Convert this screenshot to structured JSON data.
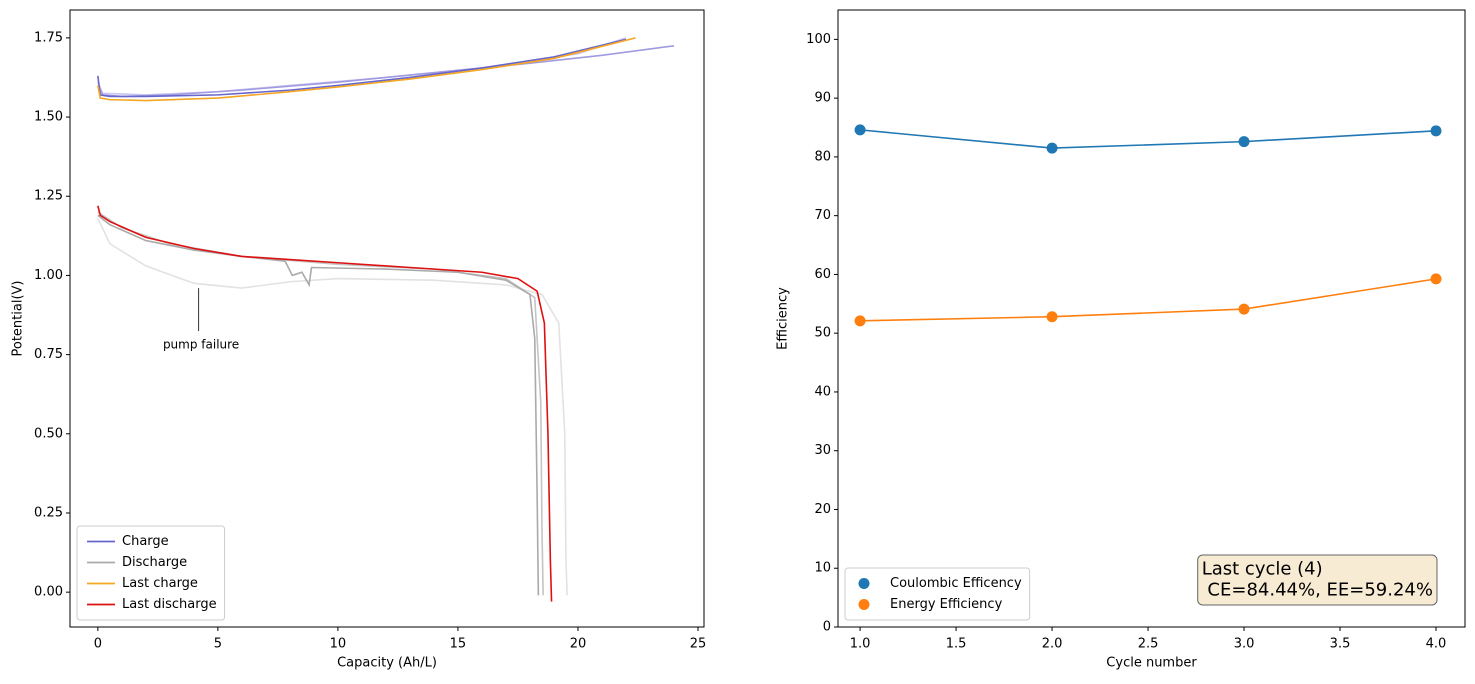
{
  "chart_data": [
    {
      "type": "line",
      "xlabel": "Capacity (Ah/L)",
      "ylabel": "Potential(V)",
      "xlim": [
        -1.16,
        25.25
      ],
      "ylim": [
        -0.11,
        1.838
      ],
      "xticks": [
        0,
        5,
        10,
        15,
        20,
        25
      ],
      "yticks": [
        {
          "value": 0,
          "label": "0.00"
        },
        {
          "value": 0.25,
          "label": "0.25"
        },
        {
          "value": 0.5,
          "label": "0.50"
        },
        {
          "value": 0.75,
          "label": "0.75"
        },
        {
          "value": 1,
          "label": "1.00"
        },
        {
          "value": 1.25,
          "label": "1.25"
        },
        {
          "value": 1.5,
          "label": "1.50"
        },
        {
          "value": 1.75,
          "label": "1.75"
        }
      ],
      "legend": "lower left",
      "markers": false,
      "series": [
        {
          "color": "#c9c4f0",
          "x": [
            0,
            0.2,
            2,
            5,
            8,
            12,
            16,
            20,
            22
          ],
          "values": [
            1.61,
            1.575,
            1.57,
            1.58,
            1.6,
            1.625,
            1.655,
            1.7,
            1.75
          ]
        },
        {
          "color": "#a09ae0",
          "x": [
            0,
            0.2,
            1,
            3,
            6,
            10,
            14,
            18,
            21,
            24
          ],
          "values": [
            1.6,
            1.57,
            1.565,
            1.57,
            1.585,
            1.61,
            1.64,
            1.67,
            1.695,
            1.725
          ]
        },
        {
          "name": "Charge",
          "color": "#6666cc",
          "x": [
            0,
            0.1,
            0.5,
            2,
            5,
            8,
            10,
            13,
            16,
            19,
            22
          ],
          "values": [
            1.63,
            1.57,
            1.565,
            1.565,
            1.57,
            1.585,
            1.6,
            1.625,
            1.655,
            1.69,
            1.745
          ]
        },
        {
          "color": "#e2e2e2",
          "x": [
            0,
            0.5,
            2,
            4,
            6,
            8,
            10,
            14,
            17,
            18.5,
            19.2,
            19.45,
            19.5,
            19.55
          ],
          "values": [
            1.18,
            1.1,
            1.03,
            0.975,
            0.96,
            0.98,
            0.99,
            0.985,
            0.97,
            0.94,
            0.85,
            0.5,
            0.1,
            -0.01
          ]
        },
        {
          "color": "#c4c4c4",
          "x": [
            0,
            1,
            3,
            6,
            10,
            14,
            17,
            18.2,
            18.45,
            18.5,
            18.55
          ],
          "values": [
            1.2,
            1.15,
            1.1,
            1.06,
            1.035,
            1.02,
            0.99,
            0.93,
            0.6,
            0.2,
            -0.01
          ]
        },
        {
          "name": "Discharge",
          "color": "#aaaaaa",
          "x": [
            0,
            0.5,
            2,
            4,
            6,
            7.8,
            8.1,
            8.5,
            8.8,
            8.9,
            12,
            15,
            17,
            18,
            18.2,
            18.3,
            18.35
          ],
          "values": [
            1.19,
            1.16,
            1.11,
            1.08,
            1.06,
            1.045,
            1.0,
            1.01,
            0.97,
            1.025,
            1.02,
            1.01,
            0.985,
            0.94,
            0.8,
            0.3,
            -0.01
          ]
        },
        {
          "name": "Last charge",
          "color": "#f5a623",
          "x": [
            0,
            0.1,
            0.5,
            2,
            5,
            8,
            10,
            13,
            16,
            19,
            22.4
          ],
          "values": [
            1.6,
            1.56,
            1.555,
            1.552,
            1.56,
            1.58,
            1.595,
            1.62,
            1.65,
            1.685,
            1.75
          ]
        },
        {
          "name": "Last discharge",
          "color": "#dd1111",
          "x": [
            0,
            0.1,
            0.5,
            2,
            4,
            6,
            8,
            10,
            13,
            16,
            17.5,
            18.3,
            18.6,
            18.75,
            18.85,
            18.9
          ],
          "values": [
            1.22,
            1.19,
            1.17,
            1.12,
            1.085,
            1.06,
            1.05,
            1.04,
            1.025,
            1.01,
            0.99,
            0.95,
            0.85,
            0.5,
            0.1,
            -0.03
          ]
        }
      ],
      "annotation": {
        "text": "pump failure",
        "xy": [
          4.2,
          0.96
        ],
        "xytext": [
          4.3,
          0.78
        ]
      }
    },
    {
      "type": "line",
      "xlabel": "Cycle number",
      "ylabel": "Efficiency",
      "xlim": [
        0.885,
        4.151
      ],
      "ylim": [
        0,
        105
      ],
      "xticks": [
        {
          "value": 1,
          "label": "1.0"
        },
        {
          "value": 1.5,
          "label": "1.5"
        },
        {
          "value": 2,
          "label": "2.0"
        },
        {
          "value": 2.5,
          "label": "2.5"
        },
        {
          "value": 3,
          "label": "3.0"
        },
        {
          "value": 3.5,
          "label": "3.5"
        },
        {
          "value": 4,
          "label": "4.0"
        }
      ],
      "yticks": [
        0,
        10,
        20,
        30,
        40,
        50,
        60,
        70,
        80,
        90,
        100
      ],
      "legend": "lower left",
      "markers": true,
      "x": [
        1,
        2,
        3,
        4
      ],
      "series": [
        {
          "name": "Coulombic Efficency",
          "color": "#1f77b4",
          "values": [
            84.6,
            81.5,
            82.6,
            84.44
          ]
        },
        {
          "name": "Energy Efficiency",
          "color": "#ff7f0e",
          "values": [
            52.1,
            52.8,
            54.1,
            59.24
          ]
        }
      ],
      "textbox": {
        "lines": [
          "Last cycle (4)",
          " CE=84.44%, EE=59.24%"
        ],
        "loc": "lower right"
      }
    }
  ]
}
